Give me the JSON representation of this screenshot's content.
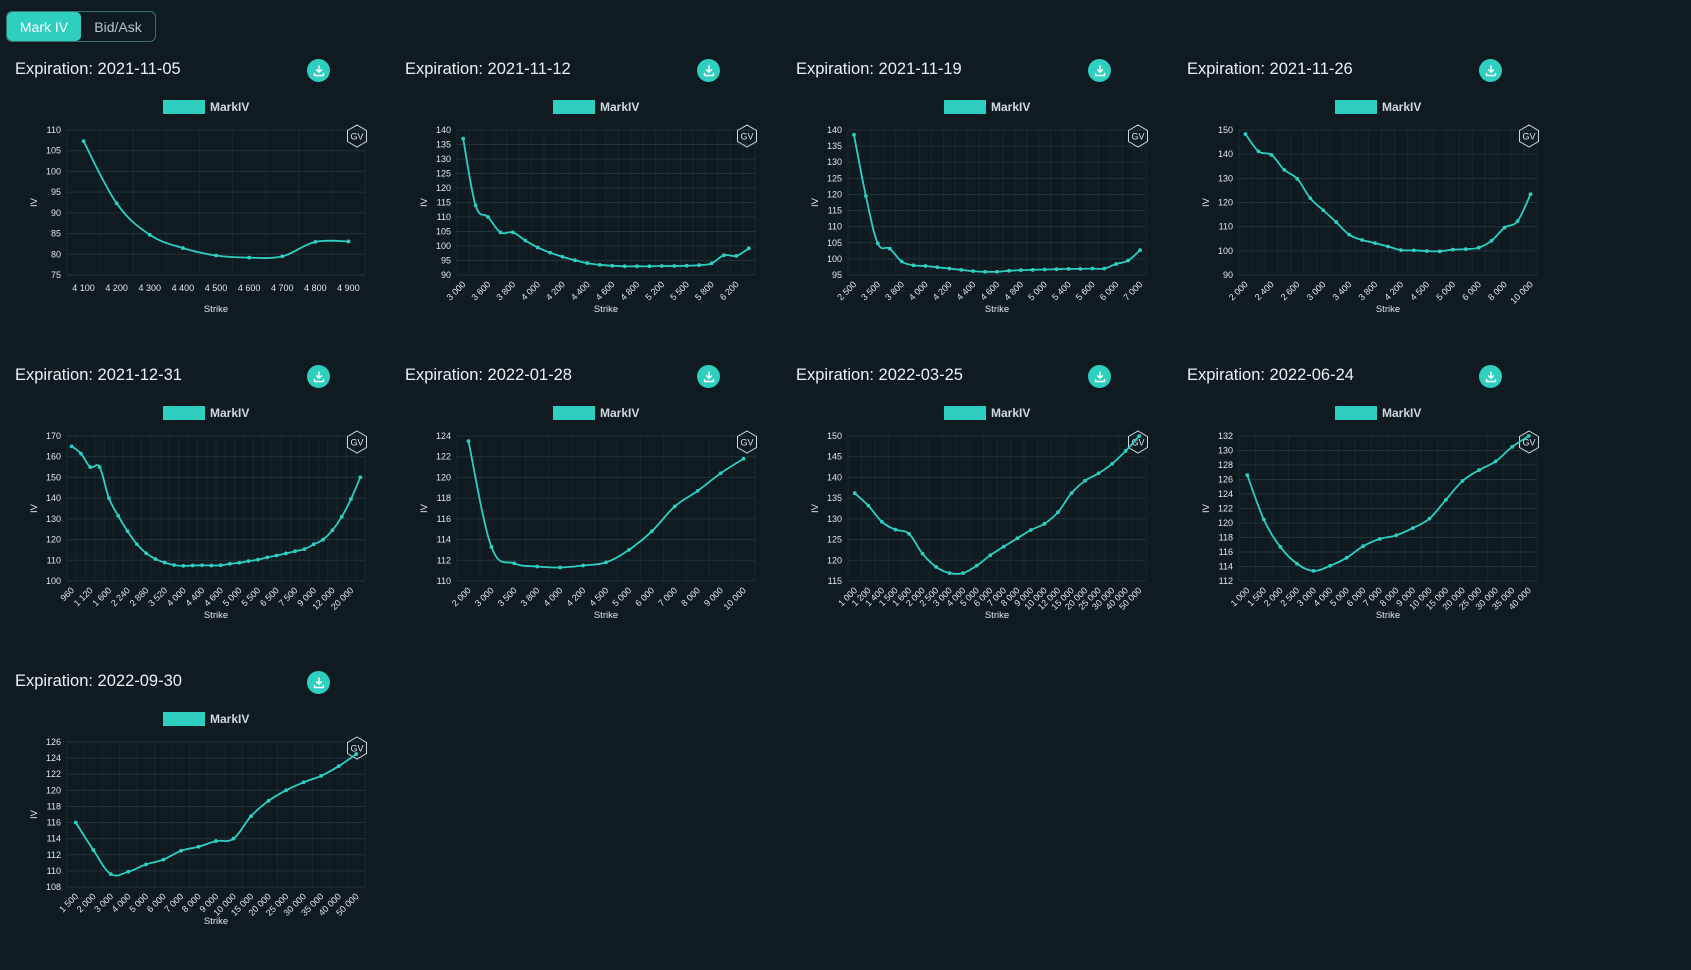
{
  "toggle": {
    "mark_label": "Mark IV",
    "bidask_label": "Bid/Ask"
  },
  "colors": {
    "series": "#2fcfc0",
    "background": "#0f1b20",
    "grid": "#22323a"
  },
  "icons": {
    "download": "download-icon",
    "watermark": "gv-logo"
  },
  "watermark_text": "GV",
  "chart_data": [
    {
      "type": "line",
      "title": "Expiration: 2021-11-05",
      "xlabel": "Strike",
      "ylabel": "IV",
      "ylim": [
        75,
        110
      ],
      "yticks": [
        75,
        80,
        85,
        90,
        95,
        100,
        105,
        110
      ],
      "categories": [
        "4 100",
        "4 200",
        "4 300",
        "4 400",
        "4 500",
        "4 600",
        "4 700",
        "4 800",
        "4 900"
      ],
      "tick_rotate": false,
      "legend": "top-center",
      "grid": true,
      "series": [
        {
          "name": "MarkIV",
          "values": [
            107.3,
            92.3,
            84.7,
            81.5,
            79.7,
            79.2,
            79.5,
            83.0,
            83.1
          ]
        }
      ]
    },
    {
      "type": "line",
      "title": "Expiration: 2021-11-12",
      "xlabel": "Strike",
      "ylabel": "IV",
      "ylim": [
        90,
        140
      ],
      "yticks": [
        90,
        95,
        100,
        105,
        110,
        115,
        120,
        125,
        130,
        135,
        140
      ],
      "categories": [
        "3 000",
        "",
        "3 600",
        "",
        "3 800",
        "",
        "4 000",
        "",
        "4 200",
        "",
        "4 400",
        "",
        "4 600",
        "",
        "4 800",
        "",
        "5 200",
        "",
        "5 500",
        "",
        "5 800",
        "",
        "6 200",
        ""
      ],
      "tick_rotate": true,
      "legend": "top-center",
      "grid": true,
      "series": [
        {
          "name": "MarkIV",
          "values": [
            137,
            114,
            110,
            104.7,
            104.7,
            101.9,
            99.5,
            97.7,
            96.3,
            95.1,
            94.1,
            93.5,
            93.2,
            93.0,
            93.0,
            93.0,
            93.1,
            93.1,
            93.2,
            93.4,
            94.0,
            96.8,
            96.6,
            99.2
          ]
        }
      ]
    },
    {
      "type": "line",
      "title": "Expiration: 2021-11-19",
      "xlabel": "Strike",
      "ylabel": "IV",
      "ylim": [
        95,
        140
      ],
      "yticks": [
        95,
        100,
        105,
        110,
        115,
        120,
        125,
        130,
        135,
        140
      ],
      "categories": [
        "2 500",
        "",
        "3 500",
        "",
        "3 800",
        "",
        "4 000",
        "",
        "4 200",
        "",
        "4 400",
        "",
        "4 600",
        "",
        "4 800",
        "",
        "5 000",
        "",
        "5 400",
        "",
        "5 600",
        "",
        "6 000",
        "",
        "7 000"
      ],
      "tick_rotate": true,
      "legend": "top-center",
      "grid": true,
      "series": [
        {
          "name": "MarkIV",
          "values": [
            138.5,
            119.5,
            104.8,
            103.2,
            99.2,
            98.0,
            97.8,
            97.4,
            97.0,
            96.6,
            96.2,
            96.0,
            96.0,
            96.3,
            96.5,
            96.6,
            96.7,
            96.8,
            96.9,
            96.9,
            97.0,
            97.0,
            98.4,
            99.5,
            102.7
          ]
        }
      ]
    },
    {
      "type": "line",
      "title": "Expiration: 2021-11-26",
      "xlabel": "Strike",
      "ylabel": "IV",
      "ylim": [
        90,
        150
      ],
      "yticks": [
        90,
        100,
        110,
        120,
        130,
        140,
        150
      ],
      "categories": [
        "2 000",
        "",
        "2 400",
        "",
        "2 600",
        "",
        "3 000",
        "",
        "3 400",
        "",
        "3 800",
        "",
        "4 200",
        "",
        "4 500",
        "",
        "5 000",
        "",
        "6 000",
        "",
        "8 000",
        "",
        "10 000"
      ],
      "tick_rotate": true,
      "legend": "top-center",
      "grid": true,
      "series": [
        {
          "name": "MarkIV",
          "values": [
            148.3,
            141.2,
            139.7,
            133.5,
            129.8,
            121.8,
            116.8,
            111.9,
            106.7,
            104.5,
            103.2,
            101.8,
            100.3,
            100.2,
            99.9,
            99.8,
            100.5,
            100.7,
            101.3,
            104.2,
            109.6,
            112.3,
            123.4
          ]
        }
      ]
    },
    {
      "type": "line",
      "title": "Expiration: 2021-12-31",
      "xlabel": "Strike",
      "ylabel": "IV",
      "ylim": [
        100,
        170
      ],
      "yticks": [
        100,
        110,
        120,
        130,
        140,
        150,
        160,
        170
      ],
      "categories": [
        "960",
        "",
        "1 120",
        "",
        "1 600",
        "",
        "2 240",
        "",
        "2 880",
        "",
        "3 520",
        "",
        "4 000",
        "",
        "4 400",
        "",
        "4 600",
        "",
        "5 000",
        "",
        "5 500",
        "",
        "6 500",
        "",
        "7 500",
        "",
        "9 000",
        "",
        "12 000",
        "",
        "20 000",
        ""
      ],
      "tick_rotate": true,
      "legend": "top-center",
      "grid": true,
      "series": [
        {
          "name": "MarkIV",
          "values": [
            165,
            161.5,
            155,
            155,
            140,
            131.5,
            124.1,
            117.8,
            113.4,
            110.6,
            108.9,
            107.7,
            107.3,
            107.5,
            107.6,
            107.5,
            107.6,
            108.3,
            108.8,
            109.6,
            110.3,
            111.4,
            112.3,
            113.3,
            114.4,
            115.4,
            117.7,
            120.0,
            124.5,
            131.0,
            139.6,
            150.1
          ]
        }
      ]
    },
    {
      "type": "line",
      "title": "Expiration: 2022-01-28",
      "xlabel": "Strike",
      "ylabel": "IV",
      "ylim": [
        110,
        124
      ],
      "yticks": [
        110,
        112,
        114,
        116,
        118,
        120,
        122,
        124
      ],
      "categories": [
        "2 000",
        "3 000",
        "3 500",
        "3 800",
        "4 000",
        "4 200",
        "4 500",
        "5 000",
        "6 000",
        "7 000",
        "8 000",
        "9 000",
        "10 000"
      ],
      "tick_rotate": true,
      "legend": "top-center",
      "grid": true,
      "series": [
        {
          "name": "MarkIV",
          "values": [
            123.5,
            113.3,
            111.7,
            111.4,
            111.3,
            111.5,
            111.8,
            113.0,
            114.8,
            117.2,
            118.7,
            120.4,
            121.8
          ]
        }
      ]
    },
    {
      "type": "line",
      "title": "Expiration: 2022-03-25",
      "xlabel": "Strike",
      "ylabel": "IV",
      "ylim": [
        115,
        150
      ],
      "yticks": [
        115,
        120,
        125,
        130,
        135,
        140,
        145,
        150
      ],
      "categories": [
        "1 000",
        "1 200",
        "1 400",
        "1 500",
        "1 600",
        "2 000",
        "2 500",
        "3 000",
        "4 000",
        "5 000",
        "6 000",
        "7 000",
        "8 000",
        "9 000",
        "10 000",
        "12 000",
        "15 000",
        "20 000",
        "25 000",
        "30 000",
        "40 000",
        "50 000"
      ],
      "tick_rotate": true,
      "legend": "top-center",
      "grid": true,
      "series": [
        {
          "name": "MarkIV",
          "values": [
            136.2,
            133.2,
            129.3,
            127.4,
            126.4,
            121.6,
            118.4,
            116.9,
            116.9,
            118.7,
            121.2,
            123.3,
            125.3,
            127.3,
            128.8,
            131.6,
            136.2,
            139.2,
            141.0,
            143.3,
            146.4,
            150.0
          ]
        }
      ]
    },
    {
      "type": "line",
      "title": "Expiration: 2022-06-24",
      "xlabel": "Strike",
      "ylabel": "IV",
      "ylim": [
        112,
        132
      ],
      "yticks": [
        112,
        114,
        116,
        118,
        120,
        122,
        124,
        126,
        128,
        130,
        132
      ],
      "categories": [
        "1 000",
        "1 500",
        "2 000",
        "2 500",
        "3 000",
        "4 000",
        "5 000",
        "6 000",
        "7 000",
        "8 000",
        "9 000",
        "10 000",
        "15 000",
        "20 000",
        "25 000",
        "30 000",
        "35 000",
        "40 000"
      ],
      "tick_rotate": true,
      "legend": "top-center",
      "grid": true,
      "series": [
        {
          "name": "MarkIV",
          "values": [
            126.6,
            120.5,
            116.7,
            114.4,
            113.4,
            114.1,
            115.2,
            116.8,
            117.8,
            118.3,
            119.3,
            120.6,
            123.2,
            125.8,
            127.3,
            128.5,
            130.5,
            132.0
          ]
        }
      ]
    },
    {
      "type": "line",
      "title": "Expiration: 2022-09-30",
      "xlabel": "Strike",
      "ylabel": "IV",
      "ylim": [
        108,
        126
      ],
      "yticks": [
        108,
        110,
        112,
        114,
        116,
        118,
        120,
        122,
        124,
        126
      ],
      "categories": [
        "1 500",
        "2 000",
        "3 000",
        "4 000",
        "5 000",
        "6 000",
        "7 000",
        "8 000",
        "9 000",
        "10 000",
        "15 000",
        "20 000",
        "25 000",
        "30 000",
        "35 000",
        "40 000",
        "50 000"
      ],
      "tick_rotate": true,
      "legend": "top-center",
      "grid": true,
      "series": [
        {
          "name": "MarkIV",
          "values": [
            116.0,
            112.6,
            109.6,
            109.9,
            110.8,
            111.4,
            112.5,
            113.0,
            113.7,
            114.0,
            116.8,
            118.7,
            120.0,
            121.0,
            121.8,
            123.0,
            124.5
          ]
        }
      ]
    }
  ]
}
